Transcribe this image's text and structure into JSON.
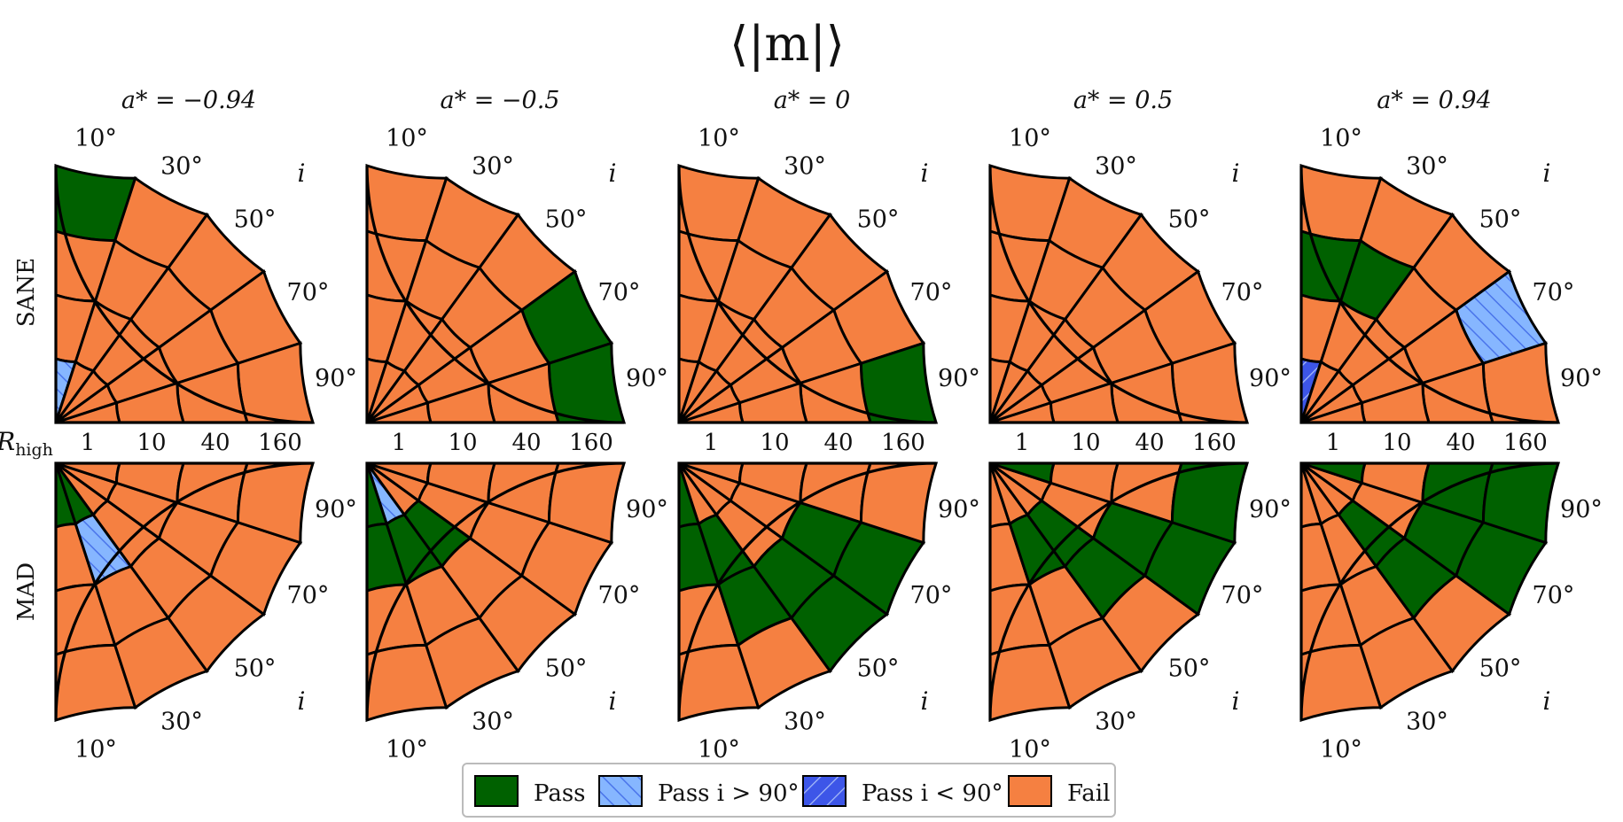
{
  "chart_data": {
    "type": "heatmap",
    "layout": "polar-quadrant-grid",
    "title": "⟨|m|⟩",
    "columns": [
      "a* = −0.94",
      "a* = −0.5",
      "a* = 0",
      "a* = 0.5",
      "a* = 0.94"
    ],
    "rows": [
      "SANE",
      "MAD"
    ],
    "radial_axis_label": "R",
    "radial_axis_label_sub": "high",
    "radial_ticks": [
      "1",
      "10",
      "40",
      "160"
    ],
    "angular_axis_label": "i",
    "angular_ticks": [
      "10°",
      "30°",
      "50°",
      "70°",
      "90°"
    ],
    "r_high_values": [
      1,
      10,
      40,
      160
    ],
    "inclination_sectors": 5,
    "status_codes": {
      "P": "Pass",
      "H": "Pass i > 90°",
      "L": "Pass i < 90°",
      "F": "Fail"
    },
    "legend": [
      {
        "key": "P",
        "label": "Pass",
        "color": "#006100"
      },
      {
        "key": "H",
        "label": "Pass i > 90°",
        "color": "#86b6ff",
        "hatch": "#4a74ea"
      },
      {
        "key": "L",
        "label": "Pass i < 90°",
        "color": "#3d56e8",
        "hatch": "#a9bdf7"
      },
      {
        "key": "F",
        "label": "Fail",
        "color": "#f58041"
      }
    ],
    "legend_position": "bottom-center",
    "panels": [
      {
        "row": "SANE",
        "column": "a* = −0.94",
        "cells": [
          [
            "P",
            "F",
            "F",
            "F",
            "F"
          ],
          [
            "F",
            "F",
            "F",
            "F",
            "F"
          ],
          [
            "F",
            "F",
            "F",
            "F",
            "F"
          ],
          [
            "H",
            "F",
            "F",
            "F",
            "F"
          ]
        ]
      },
      {
        "row": "SANE",
        "column": "a* = −0.5",
        "cells": [
          [
            "F",
            "F",
            "F",
            "P",
            "P"
          ],
          [
            "F",
            "F",
            "F",
            "F",
            "F"
          ],
          [
            "F",
            "F",
            "F",
            "F",
            "F"
          ],
          [
            "F",
            "F",
            "F",
            "F",
            "F"
          ]
        ]
      },
      {
        "row": "SANE",
        "column": "a* = 0",
        "cells": [
          [
            "F",
            "F",
            "F",
            "F",
            "P"
          ],
          [
            "F",
            "F",
            "F",
            "F",
            "F"
          ],
          [
            "F",
            "F",
            "F",
            "F",
            "F"
          ],
          [
            "F",
            "F",
            "F",
            "F",
            "F"
          ]
        ]
      },
      {
        "row": "SANE",
        "column": "a* = 0.5",
        "cells": [
          [
            "F",
            "F",
            "F",
            "F",
            "F"
          ],
          [
            "F",
            "F",
            "F",
            "F",
            "F"
          ],
          [
            "F",
            "F",
            "F",
            "F",
            "F"
          ],
          [
            "F",
            "F",
            "F",
            "F",
            "F"
          ]
        ]
      },
      {
        "row": "SANE",
        "column": "a* = 0.94",
        "cells": [
          [
            "F",
            "F",
            "F",
            "H",
            "F"
          ],
          [
            "P",
            "P",
            "F",
            "F",
            "F"
          ],
          [
            "F",
            "F",
            "F",
            "F",
            "F"
          ],
          [
            "L",
            "F",
            "F",
            "F",
            "F"
          ]
        ]
      },
      {
        "row": "MAD",
        "column": "a* = −0.94",
        "cells": [
          [
            "P",
            "P",
            "F",
            "F",
            "F"
          ],
          [
            "F",
            "H",
            "F",
            "F",
            "F"
          ],
          [
            "F",
            "F",
            "F",
            "F",
            "F"
          ],
          [
            "F",
            "F",
            "F",
            "F",
            "F"
          ]
        ]
      },
      {
        "row": "MAD",
        "column": "a* = −0.5",
        "cells": [
          [
            "P",
            "H",
            "F",
            "F",
            "F"
          ],
          [
            "P",
            "P",
            "P",
            "F",
            "F"
          ],
          [
            "F",
            "F",
            "F",
            "F",
            "F"
          ],
          [
            "F",
            "F",
            "F",
            "F",
            "F"
          ]
        ]
      },
      {
        "row": "MAD",
        "column": "a* = 0",
        "cells": [
          [
            "P",
            "F",
            "F",
            "F",
            "F"
          ],
          [
            "P",
            "P",
            "F",
            "F",
            "F"
          ],
          [
            "F",
            "P",
            "P",
            "P",
            "F"
          ],
          [
            "F",
            "F",
            "P",
            "P",
            "F"
          ]
        ]
      },
      {
        "row": "MAD",
        "column": "a* = 0.5",
        "cells": [
          [
            "F",
            "F",
            "F",
            "F",
            "P"
          ],
          [
            "F",
            "P",
            "P",
            "F",
            "F"
          ],
          [
            "F",
            "F",
            "P",
            "P",
            "F"
          ],
          [
            "F",
            "F",
            "F",
            "P",
            "P"
          ]
        ]
      },
      {
        "row": "MAD",
        "column": "a* = 0.94",
        "cells": [
          [
            "F",
            "F",
            "F",
            "F",
            "P"
          ],
          [
            "F",
            "F",
            "P",
            "F",
            "F"
          ],
          [
            "F",
            "F",
            "P",
            "P",
            "P"
          ],
          [
            "F",
            "F",
            "F",
            "P",
            "P"
          ]
        ]
      }
    ]
  }
}
